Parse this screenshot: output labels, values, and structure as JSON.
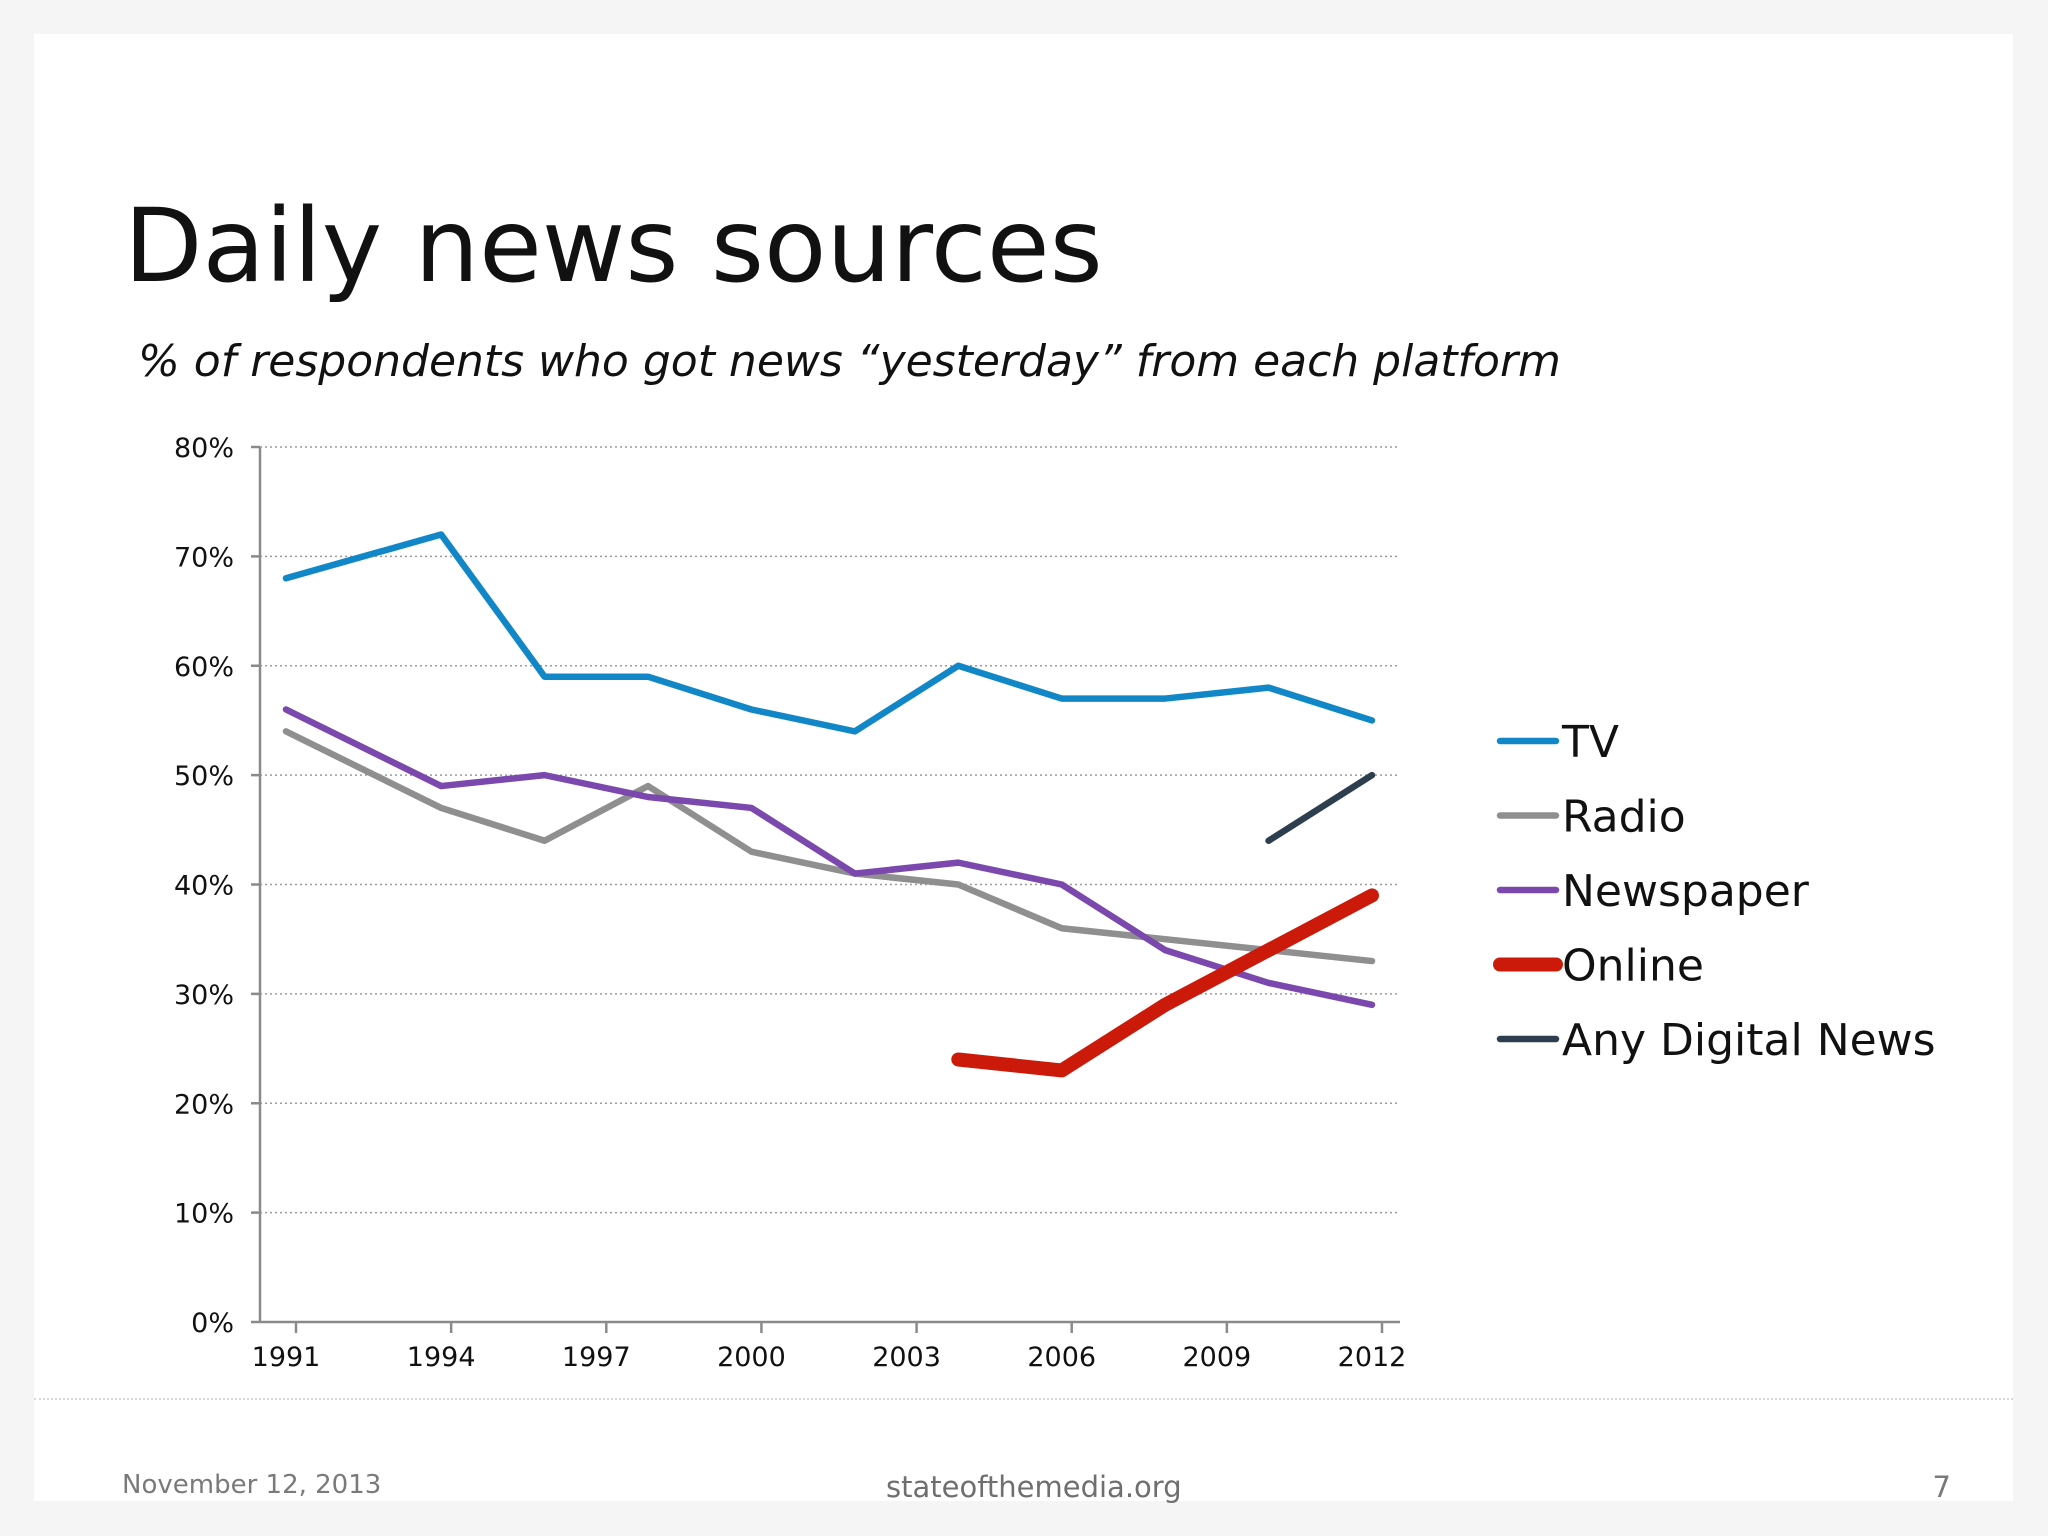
{
  "slide": {
    "title": "Daily news sources",
    "subtitle": "% of respondents who got news “yesterday” from each platform",
    "footer": {
      "date": "November 12, 2013",
      "source": "stateofthemedia.org",
      "page": "7"
    }
  },
  "chart_data": {
    "type": "line",
    "title": "",
    "xlabel": "",
    "ylabel": "",
    "x_range": [
      1991,
      2012
    ],
    "x_ticks": [
      1991,
      1994,
      1997,
      2000,
      2003,
      2006,
      2009,
      2012
    ],
    "x_tick_labels": [
      "1991",
      "1994",
      "1997",
      "2000",
      "2003",
      "2006",
      "2009",
      "2012"
    ],
    "ylim": [
      0,
      80
    ],
    "y_ticks": [
      0,
      10,
      20,
      30,
      40,
      50,
      60,
      70,
      80
    ],
    "y_tick_labels": [
      "0%",
      "10%",
      "20%",
      "30%",
      "40%",
      "50%",
      "60%",
      "70%",
      "80%"
    ],
    "grid": true,
    "legend_position": "right",
    "series": [
      {
        "name": "TV",
        "color": "#1287c8",
        "x": [
          1991,
          1994,
          1996,
          1998,
          2000,
          2002,
          2004,
          2006,
          2008,
          2010,
          2012
        ],
        "values": [
          68,
          72,
          59,
          59,
          56,
          54,
          60,
          57,
          57,
          58,
          55
        ]
      },
      {
        "name": "Radio",
        "color": "#8f8f8f",
        "x": [
          1991,
          1994,
          1996,
          1998,
          2000,
          2002,
          2004,
          2006,
          2008,
          2010,
          2012
        ],
        "values": [
          54,
          47,
          44,
          49,
          43,
          41,
          40,
          36,
          35,
          34,
          33
        ]
      },
      {
        "name": "Newspaper",
        "color": "#7b48ad",
        "x": [
          1991,
          1994,
          1996,
          1998,
          2000,
          2002,
          2004,
          2006,
          2008,
          2010,
          2012
        ],
        "values": [
          56,
          49,
          50,
          48,
          47,
          41,
          42,
          40,
          34,
          31,
          29
        ]
      },
      {
        "name": "Online",
        "color": "#cc1a0a",
        "x": [
          2004,
          2006,
          2008,
          2010,
          2012
        ],
        "values": [
          24,
          23,
          29,
          34,
          39
        ]
      },
      {
        "name": "Any Digital News",
        "color": "#2d3f4f",
        "x": [
          2010,
          2012
        ],
        "values": [
          44,
          50
        ]
      }
    ]
  }
}
